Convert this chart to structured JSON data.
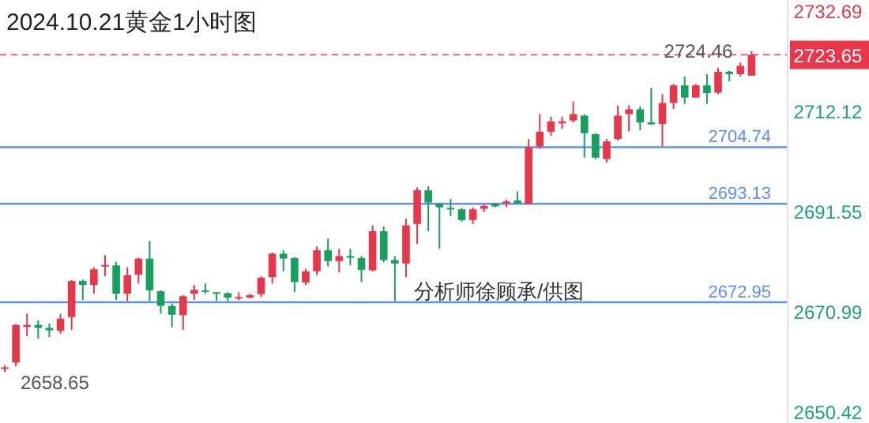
{
  "chart_data": {
    "type": "candlestick",
    "title": "2024.10.21黄金1小时图",
    "categories": [
      null,
      null,
      null,
      null,
      null,
      null,
      null,
      null,
      null,
      null,
      null,
      null,
      null,
      null,
      null,
      null,
      null,
      null,
      null,
      null,
      null,
      null,
      null,
      null,
      null,
      null,
      null,
      null,
      null,
      null,
      null,
      null,
      null,
      null,
      null,
      null,
      null,
      null,
      null,
      null,
      null,
      null,
      null,
      null,
      null,
      null,
      null,
      null,
      null,
      null,
      null,
      null,
      null,
      null,
      null,
      null,
      null,
      null,
      null,
      null,
      null,
      null,
      null,
      null,
      null,
      null,
      null,
      null
    ],
    "ohlc": [
      [
        2659.5,
        2660.0,
        2658.65,
        2659.6
      ],
      [
        2660.6,
        2668.5,
        2659.8,
        2668.3
      ],
      [
        2667.9,
        2670.6,
        2666.0,
        2668.3
      ],
      [
        2668.3,
        2669.3,
        2665.5,
        2667.7
      ],
      [
        2667.7,
        2668.6,
        2665.8,
        2667.2
      ],
      [
        2667.1,
        2670.6,
        2666.5,
        2669.6
      ],
      [
        2669.9,
        2677.5,
        2667.3,
        2677.3
      ],
      [
        2677.3,
        2677.6,
        2673.4,
        2676.5
      ],
      [
        2676.5,
        2680.1,
        2674.7,
        2679.7
      ],
      [
        2680.3,
        2682.6,
        2678.3,
        2680.6
      ],
      [
        2680.5,
        2681.2,
        2673.4,
        2674.7
      ],
      [
        2674.7,
        2680.1,
        2673.2,
        2678.5
      ],
      [
        2678.6,
        2682.1,
        2676.8,
        2681.9
      ],
      [
        2681.9,
        2685.5,
        2673.2,
        2675.4
      ],
      [
        2675.2,
        2675.4,
        2670.6,
        2672.2
      ],
      [
        2672.2,
        2672.7,
        2667.8,
        2670.4
      ],
      [
        2670.3,
        2674.4,
        2667.3,
        2674.2
      ],
      [
        2674.7,
        2676.5,
        2673.4,
        2675.5
      ],
      [
        2675.4,
        2676.8,
        2674.7,
        2675.1
      ],
      [
        2675.0,
        2675.0,
        2673.2,
        2674.7
      ],
      [
        2674.8,
        2675.0,
        2673.2,
        2673.9
      ],
      [
        2673.7,
        2675.0,
        2673.4,
        2674.0
      ],
      [
        2673.9,
        2674.7,
        2673.7,
        2674.4
      ],
      [
        2674.6,
        2678.3,
        2674.0,
        2678.0
      ],
      [
        2678.1,
        2683.2,
        2676.8,
        2682.9
      ],
      [
        2682.9,
        2683.6,
        2679.3,
        2681.9
      ],
      [
        2682.0,
        2682.2,
        2675.0,
        2677.1
      ],
      [
        2677.0,
        2679.8,
        2676.5,
        2679.3
      ],
      [
        2679.3,
        2684.4,
        2678.5,
        2683.6
      ],
      [
        2683.6,
        2686.0,
        2680.3,
        2681.4
      ],
      [
        2681.4,
        2683.9,
        2679.1,
        2682.4
      ],
      [
        2682.4,
        2683.9,
        2680.5,
        2682.1
      ],
      [
        2682.0,
        2682.4,
        2677.1,
        2679.6
      ],
      [
        2679.5,
        2688.7,
        2679.3,
        2687.5
      ],
      [
        2687.5,
        2688.5,
        2681.2,
        2681.6
      ],
      [
        2681.6,
        2682.4,
        2673.2,
        2680.9
      ],
      [
        2680.9,
        2690.1,
        2678.1,
        2688.7
      ],
      [
        2689.0,
        2696.5,
        2684.9,
        2695.9
      ],
      [
        2695.9,
        2696.7,
        2687.5,
        2693.4
      ],
      [
        2693.1,
        2693.3,
        2683.9,
        2692.4
      ],
      [
        2692.3,
        2694.1,
        2690.6,
        2692.0
      ],
      [
        2692.0,
        2692.3,
        2689.5,
        2689.8
      ],
      [
        2689.8,
        2692.4,
        2689.0,
        2692.0
      ],
      [
        2692.1,
        2693.0,
        2691.4,
        2692.7
      ],
      [
        2693.1,
        2693.3,
        2692.4,
        2692.6
      ],
      [
        2693.2,
        2694.0,
        2692.4,
        2693.6
      ],
      [
        2693.8,
        2695.7,
        2693.1,
        2693.2
      ],
      [
        2693.1,
        2706.4,
        2693.1,
        2704.7
      ],
      [
        2704.9,
        2711.5,
        2704.4,
        2707.9
      ],
      [
        2707.9,
        2711.0,
        2707.1,
        2710.0
      ],
      [
        2709.6,
        2711.0,
        2708.5,
        2710.0
      ],
      [
        2710.2,
        2714.1,
        2709.8,
        2711.5
      ],
      [
        2711.2,
        2711.5,
        2702.6,
        2707.6
      ],
      [
        2707.4,
        2707.6,
        2702.3,
        2702.6
      ],
      [
        2702.3,
        2706.4,
        2701.6,
        2705.9
      ],
      [
        2706.4,
        2713.3,
        2706.1,
        2711.2
      ],
      [
        2711.5,
        2713.3,
        2708.0,
        2712.5
      ],
      [
        2712.5,
        2713.1,
        2708.2,
        2709.8
      ],
      [
        2709.8,
        2716.9,
        2709.4,
        2709.4
      ],
      [
        2709.5,
        2715.6,
        2704.9,
        2713.8
      ],
      [
        2713.8,
        2717.7,
        2712.6,
        2717.4
      ],
      [
        2717.4,
        2719.2,
        2713.6,
        2714.9
      ],
      [
        2714.9,
        2717.7,
        2714.9,
        2717.4
      ],
      [
        2717.4,
        2719.7,
        2713.6,
        2715.8
      ],
      [
        2715.9,
        2721.0,
        2715.6,
        2720.2
      ],
      [
        2720.2,
        2720.4,
        2718.2,
        2719.7
      ],
      [
        2719.7,
        2722.1,
        2719.2,
        2721.4
      ],
      [
        2719.4,
        2724.46,
        2719.4,
        2723.65
      ]
    ],
    "ylim": [
      2648.2,
      2734.9
    ],
    "yticks": [
      2650.42,
      2670.99,
      2691.55,
      2712.12,
      2732.69
    ],
    "ref_lines": [
      {
        "axis": "y",
        "value": 2704.74,
        "label": "2704.74",
        "color": "#5b8ff9"
      },
      {
        "axis": "y",
        "value": 2693.13,
        "label": "2693.13",
        "color": "#5b8ff9"
      },
      {
        "axis": "y",
        "value": 2672.95,
        "label": "2672.95",
        "color": "#5b8ff9"
      },
      {
        "axis": "y",
        "value": 2723.65,
        "label": "2723.65",
        "color": "#e8364a",
        "line_style": "dashed"
      }
    ],
    "annotations": [
      "分析师徐顾承/供图",
      "2724.46",
      "2658.65"
    ]
  }
}
